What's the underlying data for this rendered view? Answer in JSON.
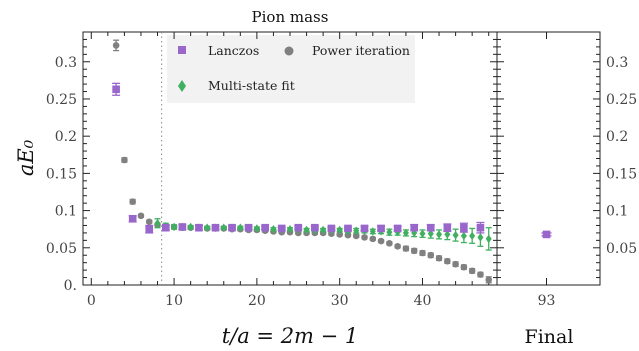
{
  "chart_data": {
    "type": "scatter",
    "title": "Pion mass",
    "xlabel": "t/a = 2m − 1",
    "ylabel": "aE₀",
    "final_panel_label": "Final",
    "ylim": [
      0,
      0.34
    ],
    "xlim": [
      -1,
      49
    ],
    "y_ticks": [
      "0.",
      "0.05",
      "0.1",
      "0.15",
      "0.2",
      "0.25",
      "0.3"
    ],
    "y_ticks_right": [
      "0.05",
      "0.1",
      "0.15",
      "0.2",
      "0.25",
      "0.3"
    ],
    "x_ticks": [
      "0",
      "10",
      "20",
      "30",
      "40"
    ],
    "final_x_tick": "93",
    "vline_x": 8.5,
    "legend": {
      "placement": "top-left",
      "entries": [
        {
          "label": "Lanczos",
          "color": "#9966cc",
          "marker": "square"
        },
        {
          "label": "Power iteration",
          "color": "#808080",
          "marker": "circle"
        },
        {
          "label": "Multi-state fit",
          "color": "#40b060",
          "marker": "diamond"
        }
      ]
    },
    "series": [
      {
        "name": "Power iteration",
        "color": "#808080",
        "marker": "circle",
        "points": [
          [
            3,
            0.322,
            0.007
          ],
          [
            4,
            0.168,
            0.003
          ],
          [
            5,
            0.112,
            0.003
          ],
          [
            6,
            0.093,
            0.002
          ],
          [
            7,
            0.085,
            0.002
          ],
          [
            8,
            0.081,
            0.002
          ],
          [
            9,
            0.079,
            0.002
          ],
          [
            10,
            0.078,
            0.002
          ],
          [
            11,
            0.077,
            0.002
          ],
          [
            12,
            0.077,
            0.002
          ],
          [
            13,
            0.077,
            0.002
          ],
          [
            14,
            0.076,
            0.002
          ],
          [
            15,
            0.076,
            0.002
          ],
          [
            16,
            0.076,
            0.002
          ],
          [
            17,
            0.075,
            0.002
          ],
          [
            18,
            0.075,
            0.002
          ],
          [
            19,
            0.074,
            0.002
          ],
          [
            20,
            0.074,
            0.002
          ],
          [
            21,
            0.073,
            0.002
          ],
          [
            22,
            0.072,
            0.002
          ],
          [
            23,
            0.071,
            0.002
          ],
          [
            24,
            0.071,
            0.002
          ],
          [
            25,
            0.07,
            0.002
          ],
          [
            26,
            0.07,
            0.002
          ],
          [
            27,
            0.07,
            0.002
          ],
          [
            28,
            0.07,
            0.002
          ],
          [
            29,
            0.069,
            0.002
          ],
          [
            30,
            0.068,
            0.002
          ],
          [
            31,
            0.067,
            0.002
          ],
          [
            32,
            0.066,
            0.002
          ],
          [
            33,
            0.064,
            0.002
          ],
          [
            34,
            0.062,
            0.002
          ],
          [
            35,
            0.059,
            0.002
          ],
          [
            36,
            0.056,
            0.002
          ],
          [
            37,
            0.052,
            0.002
          ],
          [
            38,
            0.049,
            0.003
          ],
          [
            39,
            0.046,
            0.003
          ],
          [
            40,
            0.043,
            0.003
          ],
          [
            41,
            0.04,
            0.003
          ],
          [
            42,
            0.036,
            0.003
          ],
          [
            43,
            0.032,
            0.003
          ],
          [
            44,
            0.028,
            0.003
          ],
          [
            45,
            0.024,
            0.003
          ],
          [
            46,
            0.019,
            0.003
          ],
          [
            47,
            0.014,
            0.003
          ],
          [
            48,
            0.007,
            0.004
          ]
        ]
      },
      {
        "name": "Multi-state fit",
        "color": "#40b060",
        "marker": "diamond",
        "points": [
          [
            8,
            0.083,
            0.006
          ],
          [
            9,
            0.079,
            0.004
          ],
          [
            10,
            0.078,
            0.003
          ],
          [
            11,
            0.078,
            0.003
          ],
          [
            12,
            0.078,
            0.002
          ],
          [
            13,
            0.077,
            0.002
          ],
          [
            14,
            0.077,
            0.002
          ],
          [
            15,
            0.077,
            0.002
          ],
          [
            16,
            0.077,
            0.002
          ],
          [
            17,
            0.077,
            0.002
          ],
          [
            18,
            0.077,
            0.002
          ],
          [
            19,
            0.076,
            0.002
          ],
          [
            20,
            0.076,
            0.002
          ],
          [
            21,
            0.076,
            0.002
          ],
          [
            22,
            0.075,
            0.002
          ],
          [
            23,
            0.075,
            0.002
          ],
          [
            24,
            0.075,
            0.002
          ],
          [
            25,
            0.075,
            0.002
          ],
          [
            26,
            0.074,
            0.002
          ],
          [
            27,
            0.074,
            0.002
          ],
          [
            28,
            0.074,
            0.002
          ],
          [
            29,
            0.074,
            0.002
          ],
          [
            30,
            0.074,
            0.002
          ],
          [
            31,
            0.073,
            0.003
          ],
          [
            32,
            0.073,
            0.003
          ],
          [
            33,
            0.073,
            0.003
          ],
          [
            34,
            0.072,
            0.003
          ],
          [
            35,
            0.072,
            0.003
          ],
          [
            36,
            0.071,
            0.004
          ],
          [
            37,
            0.071,
            0.004
          ],
          [
            38,
            0.07,
            0.004
          ],
          [
            39,
            0.07,
            0.005
          ],
          [
            40,
            0.069,
            0.005
          ],
          [
            41,
            0.069,
            0.006
          ],
          [
            42,
            0.068,
            0.006
          ],
          [
            43,
            0.068,
            0.007
          ],
          [
            44,
            0.067,
            0.008
          ],
          [
            45,
            0.066,
            0.009
          ],
          [
            46,
            0.066,
            0.01
          ],
          [
            47,
            0.064,
            0.012
          ],
          [
            48,
            0.062,
            0.015
          ]
        ]
      },
      {
        "name": "Lanczos",
        "color": "#9966cc",
        "marker": "square",
        "points": [
          [
            3,
            0.263,
            0.008
          ],
          [
            5,
            0.089,
            0.004
          ],
          [
            7,
            0.075,
            0.005
          ],
          [
            9,
            0.077,
            0.003
          ],
          [
            11,
            0.078,
            0.003
          ],
          [
            13,
            0.077,
            0.003
          ],
          [
            15,
            0.077,
            0.002
          ],
          [
            17,
            0.077,
            0.002
          ],
          [
            19,
            0.077,
            0.002
          ],
          [
            21,
            0.077,
            0.002
          ],
          [
            23,
            0.076,
            0.002
          ],
          [
            25,
            0.077,
            0.002
          ],
          [
            27,
            0.077,
            0.002
          ],
          [
            29,
            0.076,
            0.002
          ],
          [
            31,
            0.076,
            0.002
          ],
          [
            33,
            0.076,
            0.003
          ],
          [
            35,
            0.076,
            0.003
          ],
          [
            37,
            0.076,
            0.003
          ],
          [
            39,
            0.077,
            0.004
          ],
          [
            41,
            0.077,
            0.004
          ],
          [
            43,
            0.077,
            0.005
          ],
          [
            45,
            0.077,
            0.006
          ],
          [
            47,
            0.077,
            0.007
          ]
        ]
      }
    ],
    "final_points": [
      {
        "series": "Lanczos",
        "x": "93",
        "y": 0.068,
        "err": 0.002,
        "color": "#9966cc",
        "marker": "square"
      }
    ]
  }
}
